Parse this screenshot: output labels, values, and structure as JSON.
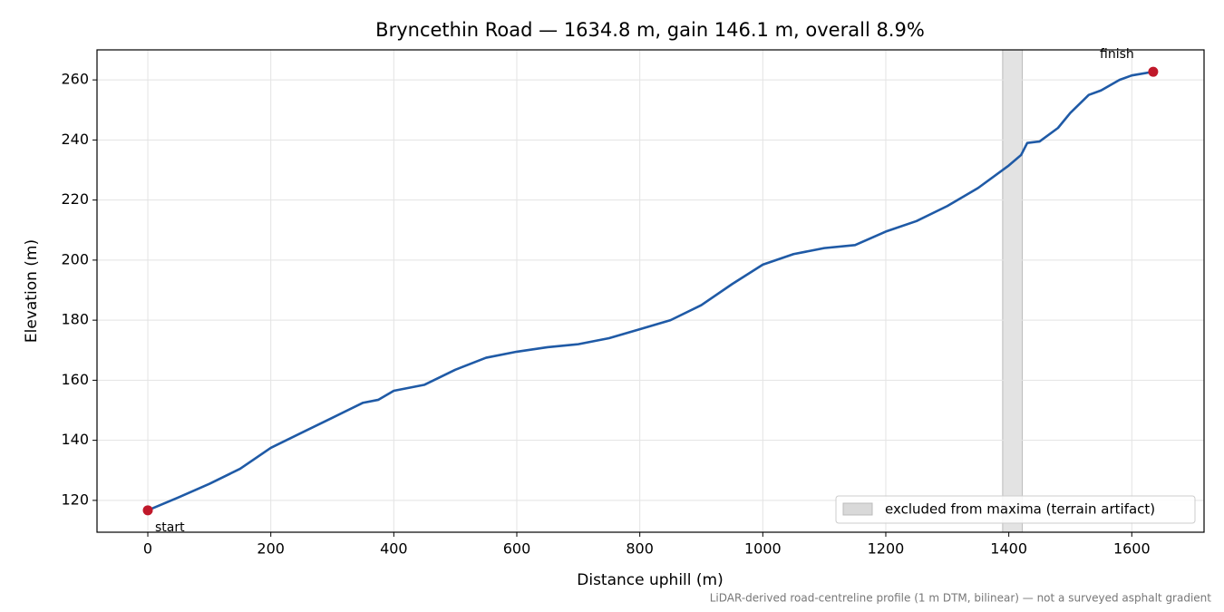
{
  "chart_data": {
    "type": "line",
    "title": "Bryncethin Road — 1634.8 m, gain 146.1 m, overall 8.9%",
    "x_label": "Distance uphill (m)",
    "y_label": "Elevation (m)",
    "footnote": "LiDAR-derived road-centreline profile (1 m DTM, bilinear) — not a surveyed asphalt gradient",
    "x": [
      0,
      50,
      100,
      150,
      200,
      250,
      300,
      350,
      375,
      400,
      450,
      500,
      550,
      600,
      650,
      700,
      750,
      800,
      850,
      900,
      950,
      1000,
      1050,
      1100,
      1150,
      1200,
      1250,
      1300,
      1350,
      1400,
      1420,
      1430,
      1450,
      1480,
      1500,
      1530,
      1550,
      1580,
      1600,
      1634.8
    ],
    "values": [
      116.7,
      121,
      125.5,
      130.5,
      137.5,
      142.5,
      147.5,
      152.5,
      153.5,
      156.5,
      158.5,
      163.5,
      167.5,
      169.5,
      171,
      172,
      174,
      177,
      180,
      185,
      192,
      198.5,
      202,
      204,
      205,
      209.5,
      213,
      218,
      224,
      231.5,
      235,
      239,
      239.5,
      244,
      249,
      255,
      256.5,
      260,
      261.5,
      262.7
    ],
    "color": "#1f5aa6",
    "markers": [
      {
        "x": 0,
        "y": 116.7,
        "label": "start"
      },
      {
        "x": 1634.8,
        "y": 262.7,
        "label": "finish"
      }
    ],
    "marker_color": "#c0182a",
    "span": {
      "range": [
        1390,
        1422
      ],
      "label": "excluded from maxima (terrain artifact)",
      "color": "#d9d9d9"
    },
    "legend": "lower right",
    "xlim": [
      -82.6,
      1717.5
    ],
    "ylim": [
      109.4,
      270
    ],
    "xticks": [
      0,
      200,
      400,
      600,
      800,
      1000,
      1200,
      1400,
      1600
    ],
    "yticks": [
      120,
      140,
      160,
      180,
      200,
      220,
      240,
      260
    ],
    "grid": true
  }
}
